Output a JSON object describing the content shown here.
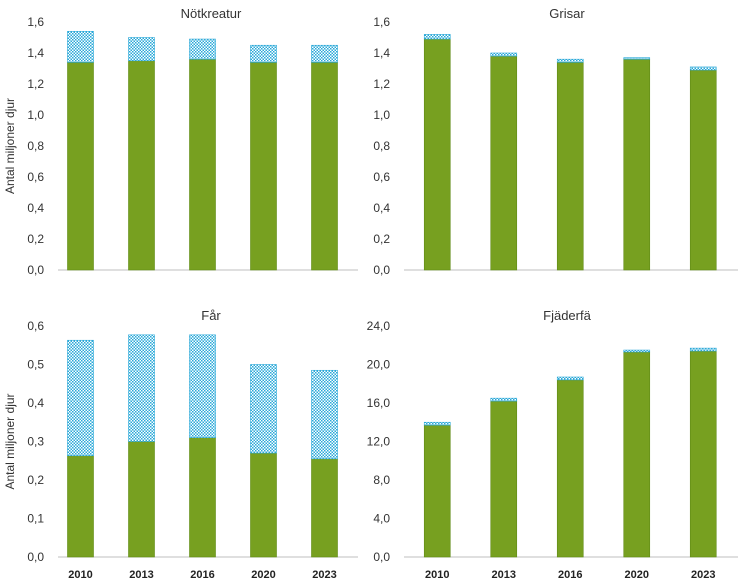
{
  "colors": {
    "base": "#77a020",
    "base_edge": "#5f8a15",
    "top": "#2aa8d8",
    "top_bg": "#ffffff",
    "axis": "#bfbfbf"
  },
  "chart_data": [
    {
      "type": "bar",
      "stacked": true,
      "title": "Nötkreatur",
      "ylabel": "Antal miljoner djur",
      "categories": [
        "2010",
        "2013",
        "2016",
        "2020",
        "2023"
      ],
      "ylim": [
        0,
        1.6
      ],
      "yticks": [
        "0,0",
        "0,2",
        "0,4",
        "0,6",
        "0,8",
        "1,0",
        "1,2",
        "1,4",
        "1,6"
      ],
      "series": [
        {
          "name": "base",
          "values": [
            1.34,
            1.35,
            1.36,
            1.34,
            1.34
          ]
        },
        {
          "name": "top",
          "values": [
            0.2,
            0.15,
            0.13,
            0.11,
            0.11
          ]
        }
      ]
    },
    {
      "type": "bar",
      "stacked": true,
      "title": "Grisar",
      "ylabel": "",
      "categories": [
        "2010",
        "2013",
        "2016",
        "2020",
        "2023"
      ],
      "ylim": [
        0,
        1.6
      ],
      "yticks": [
        "0,0",
        "0,2",
        "0,4",
        "0,6",
        "0,8",
        "1,0",
        "1,2",
        "1,4",
        "1,6"
      ],
      "series": [
        {
          "name": "base",
          "values": [
            1.49,
            1.38,
            1.34,
            1.36,
            1.29
          ]
        },
        {
          "name": "top",
          "values": [
            0.03,
            0.02,
            0.02,
            0.01,
            0.02
          ]
        }
      ]
    },
    {
      "type": "bar",
      "stacked": true,
      "title": "Får",
      "ylabel": "Antal miljoner djur",
      "categories": [
        "2010",
        "2013",
        "2016",
        "2020",
        "2023"
      ],
      "ylim": [
        0,
        0.6
      ],
      "yticks": [
        "0,0",
        "0,1",
        "0,2",
        "0,3",
        "0,4",
        "0,5",
        "0,6"
      ],
      "series": [
        {
          "name": "base",
          "values": [
            0.263,
            0.3,
            0.31,
            0.27,
            0.255
          ]
        },
        {
          "name": "top",
          "values": [
            0.3,
            0.277,
            0.267,
            0.23,
            0.23
          ]
        }
      ]
    },
    {
      "type": "bar",
      "stacked": true,
      "title": "Fjäderfä",
      "ylabel": "",
      "categories": [
        "2010",
        "2013",
        "2016",
        "2020",
        "2023"
      ],
      "ylim": [
        0,
        24
      ],
      "yticks": [
        "0,0",
        "4,0",
        "8,0",
        "12,0",
        "16,0",
        "20,0",
        "24,0"
      ],
      "series": [
        {
          "name": "base",
          "values": [
            13.7,
            16.2,
            18.4,
            21.3,
            21.4
          ]
        },
        {
          "name": "top",
          "values": [
            0.3,
            0.3,
            0.3,
            0.2,
            0.3
          ]
        }
      ]
    }
  ]
}
